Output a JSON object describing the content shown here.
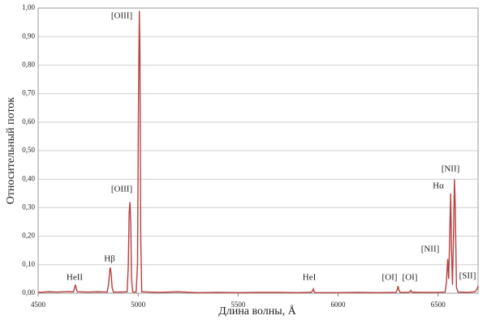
{
  "chart_data": {
    "type": "line",
    "x_label": "Длина волны, Å",
    "y_label": "Относительный поток",
    "x": [
      4500,
      4550,
      4600,
      4650,
      4676,
      4681,
      4686,
      4691,
      4696,
      4750,
      4800,
      4845,
      4852,
      4858,
      4861,
      4865,
      4870,
      4876,
      4920,
      4945,
      4951,
      4955,
      4959,
      4963,
      4967,
      4973,
      4990,
      4997,
      5002,
      5006,
      5009,
      5013,
      5018,
      5100,
      5200,
      5300,
      5400,
      5500,
      5600,
      5700,
      5800,
      5866,
      5872,
      5876,
      5880,
      5886,
      6000,
      6100,
      6200,
      6290,
      6296,
      6300,
      6304,
      6310,
      6355,
      6360,
      6364,
      6368,
      6400,
      6500,
      6535,
      6542,
      6548,
      6553,
      6558,
      6563,
      6567,
      6572,
      6577,
      6582,
      6586,
      6592,
      6600,
      6650,
      6685,
      6695,
      6700
    ],
    "series": [
      {
        "color": "#b8403d",
        "values": [
          0.003,
          0.005,
          0.004,
          0.006,
          0.005,
          0.015,
          0.03,
          0.015,
          0.005,
          0.004,
          0.005,
          0.004,
          0.03,
          0.08,
          0.09,
          0.07,
          0.02,
          0.004,
          0.004,
          0.005,
          0.1,
          0.28,
          0.32,
          0.25,
          0.05,
          0.004,
          0.004,
          0.1,
          0.7,
          0.99,
          0.85,
          0.2,
          0.005,
          0.003,
          0.005,
          0.002,
          0.003,
          0.002,
          0.003,
          0.003,
          0.002,
          0.003,
          0.008,
          0.015,
          0.006,
          0.002,
          0.002,
          0.003,
          0.002,
          0.003,
          0.012,
          0.025,
          0.012,
          0.003,
          0.003,
          0.006,
          0.01,
          0.004,
          0.003,
          0.003,
          0.004,
          0.04,
          0.12,
          0.05,
          0.2,
          0.35,
          0.15,
          0.03,
          0.2,
          0.4,
          0.3,
          0.02,
          0.004,
          0.003,
          0.005,
          0.015,
          0.025
        ]
      }
    ],
    "xlim": [
      4500,
      6700
    ],
    "xticks": [
      4500,
      5000,
      5500,
      6000,
      6500
    ],
    "ylim": [
      0,
      1
    ],
    "yticks": [
      {
        "value": 0,
        "label": "0,00"
      },
      {
        "value": 0.1,
        "label": "0,10"
      },
      {
        "value": 0.2,
        "label": "0,20"
      },
      {
        "value": 0.3,
        "label": "0,30"
      },
      {
        "value": 0.4,
        "label": "0,40"
      },
      {
        "value": 0.5,
        "label": "0,50"
      },
      {
        "value": 0.6,
        "label": "0,60"
      },
      {
        "value": 0.7,
        "label": "0,70"
      },
      {
        "value": 0.8,
        "label": "0,80"
      },
      {
        "value": 0.9,
        "label": "0,90"
      },
      {
        "value": 1,
        "label": "1,00"
      }
    ],
    "grid": true,
    "annotations": [
      "[OIII]",
      "[OIII]",
      "HeII",
      "Hβ",
      "HeI",
      "[OI]",
      "[OI]",
      "[NII]",
      "Hα",
      "[NII]",
      "[SII]"
    ]
  }
}
